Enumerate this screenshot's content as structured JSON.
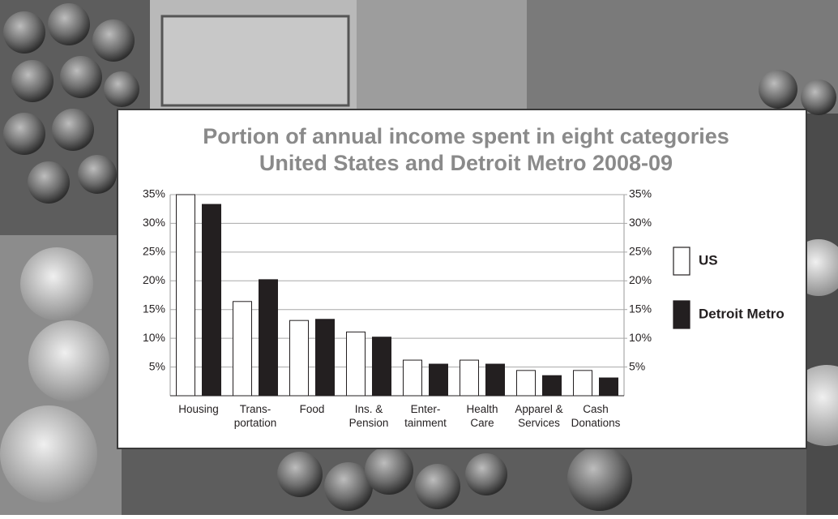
{
  "chart_data": {
    "type": "bar",
    "title": "Portion of annual income spent in eight categories",
    "subtitle": "United States and Detroit Metro 2008-09",
    "categories": [
      [
        "Housing"
      ],
      [
        "Trans-",
        "portation"
      ],
      [
        "Food"
      ],
      [
        "Ins. &",
        "Pension"
      ],
      [
        "Enter-",
        "tainment"
      ],
      [
        "Health",
        "Care"
      ],
      [
        "Apparel &",
        "Services"
      ],
      [
        "Cash",
        "Donations"
      ]
    ],
    "series": [
      {
        "name": "US",
        "color": "#ffffff",
        "values": [
          35,
          16.4,
          13.1,
          11.1,
          6.2,
          6.2,
          4.4,
          4.4
        ]
      },
      {
        "name": "Detroit Metro",
        "color": "#231f20",
        "values": [
          33.3,
          20.2,
          13.3,
          10.2,
          5.5,
          5.5,
          3.5,
          3.1
        ]
      }
    ],
    "ylim": [
      0,
      35
    ],
    "yticks": [
      {
        "value": 5,
        "label": "5%"
      },
      {
        "value": 10,
        "label": "10%"
      },
      {
        "value": 15,
        "label": "15%"
      },
      {
        "value": 20,
        "label": "20%"
      },
      {
        "value": 25,
        "label": "25%"
      },
      {
        "value": 30,
        "label": "30%"
      },
      {
        "value": 35,
        "label": "35%"
      }
    ],
    "y2lim": [
      0,
      35
    ],
    "y2ticks": [
      {
        "value": 5,
        "label": "5%"
      },
      {
        "value": 10,
        "label": "10%"
      },
      {
        "value": 15,
        "label": "15%"
      },
      {
        "value": 20,
        "label": "20%"
      },
      {
        "value": 25,
        "label": "25%"
      },
      {
        "value": 30,
        "label": "30%"
      },
      {
        "value": 35,
        "label": "35%"
      }
    ],
    "grid": true,
    "legend": "right"
  }
}
